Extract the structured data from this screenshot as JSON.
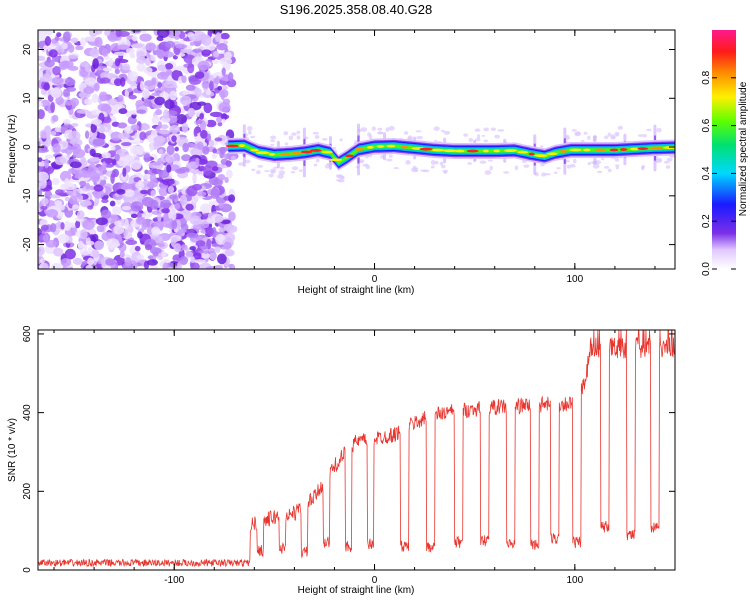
{
  "title": "S196.2025.358.08.40.G28",
  "chart_data": [
    {
      "type": "heatmap",
      "xlabel": "Height of straight line (km)",
      "ylabel": "Frequency (Hz)",
      "xlim": [
        -168,
        150
      ],
      "ylim": [
        -25,
        24
      ],
      "xticks": [
        -100,
        0,
        100
      ],
      "yticks": [
        -20,
        -10,
        0,
        10,
        20
      ],
      "colorbar": {
        "label": "Normalized spectral amplitude",
        "range": [
          0,
          1
        ],
        "ticks": [
          0.0,
          0.2,
          0.4,
          0.6,
          0.8
        ]
      },
      "noise_region_x": [
        -168,
        -73
      ],
      "signal_ridge": {
        "start_x": -73,
        "end_x": 150,
        "points": [
          {
            "x": -73,
            "y": 0.2
          },
          {
            "x": -65,
            "y": 0.3
          },
          {
            "x": -58,
            "y": -1.0
          },
          {
            "x": -50,
            "y": -1.6
          },
          {
            "x": -42,
            "y": -1.4
          },
          {
            "x": -35,
            "y": -1.1
          },
          {
            "x": -28,
            "y": -0.6
          },
          {
            "x": -22,
            "y": -1.2
          },
          {
            "x": -18,
            "y": -3.2
          },
          {
            "x": -14,
            "y": -2.2
          },
          {
            "x": -8,
            "y": -0.5
          },
          {
            "x": 0,
            "y": 0.1
          },
          {
            "x": 10,
            "y": 0.2
          },
          {
            "x": 20,
            "y": -0.2
          },
          {
            "x": 30,
            "y": -0.6
          },
          {
            "x": 40,
            "y": -0.8
          },
          {
            "x": 50,
            "y": -0.8
          },
          {
            "x": 60,
            "y": -0.8
          },
          {
            "x": 70,
            "y": -0.7
          },
          {
            "x": 78,
            "y": -1.4
          },
          {
            "x": 85,
            "y": -1.9
          },
          {
            "x": 90,
            "y": -1.2
          },
          {
            "x": 98,
            "y": -0.6
          },
          {
            "x": 110,
            "y": -0.6
          },
          {
            "x": 120,
            "y": -0.6
          },
          {
            "x": 130,
            "y": -0.4
          },
          {
            "x": 140,
            "y": -0.2
          },
          {
            "x": 150,
            "y": -0.1
          }
        ],
        "spike_x": [
          -65,
          -48,
          -35,
          -22,
          -8,
          5,
          20,
          35,
          50,
          65,
          80,
          95,
          110,
          125,
          140
        ]
      }
    },
    {
      "type": "line",
      "xlabel": "Height of straight line (km)",
      "ylabel": "SNR (10 * v/v)",
      "xlim": [
        -168,
        150
      ],
      "ylim": [
        0,
        610
      ],
      "xticks": [
        -100,
        0,
        100
      ],
      "yticks": [
        0,
        200,
        400,
        600
      ],
      "color": "#e8352e",
      "baseline": {
        "x_range": [
          -168,
          -62
        ],
        "value": 18
      },
      "envelope": [
        {
          "x": -62,
          "y": 110
        },
        {
          "x": -50,
          "y": 130
        },
        {
          "x": -40,
          "y": 140
        },
        {
          "x": -30,
          "y": 180
        },
        {
          "x": -20,
          "y": 260
        },
        {
          "x": -10,
          "y": 320
        },
        {
          "x": 0,
          "y": 330
        },
        {
          "x": 10,
          "y": 340
        },
        {
          "x": 20,
          "y": 370
        },
        {
          "x": 30,
          "y": 390
        },
        {
          "x": 40,
          "y": 400
        },
        {
          "x": 60,
          "y": 410
        },
        {
          "x": 80,
          "y": 415
        },
        {
          "x": 100,
          "y": 420
        },
        {
          "x": 105,
          "y": 470
        },
        {
          "x": 108,
          "y": 560
        },
        {
          "x": 150,
          "y": 560
        }
      ],
      "dips": [
        {
          "x": -57,
          "width": 3,
          "floor": 50
        },
        {
          "x": -46,
          "width": 3,
          "floor": 55
        },
        {
          "x": -35,
          "width": 3,
          "floor": 45
        },
        {
          "x": -24,
          "width": 3,
          "floor": 70
        },
        {
          "x": -13,
          "width": 3,
          "floor": 60
        },
        {
          "x": -2,
          "width": 3,
          "floor": 65
        },
        {
          "x": 15,
          "width": 4,
          "floor": 60
        },
        {
          "x": 28,
          "width": 4,
          "floor": 60
        },
        {
          "x": 42,
          "width": 4,
          "floor": 70
        },
        {
          "x": 55,
          "width": 4,
          "floor": 75
        },
        {
          "x": 68,
          "width": 4,
          "floor": 65
        },
        {
          "x": 80,
          "width": 4,
          "floor": 65
        },
        {
          "x": 90,
          "width": 4,
          "floor": 80
        },
        {
          "x": 101,
          "width": 4,
          "floor": 70
        },
        {
          "x": 115,
          "width": 4,
          "floor": 110
        },
        {
          "x": 128,
          "width": 4,
          "floor": 90
        },
        {
          "x": 140,
          "width": 4,
          "floor": 110
        }
      ]
    }
  ]
}
